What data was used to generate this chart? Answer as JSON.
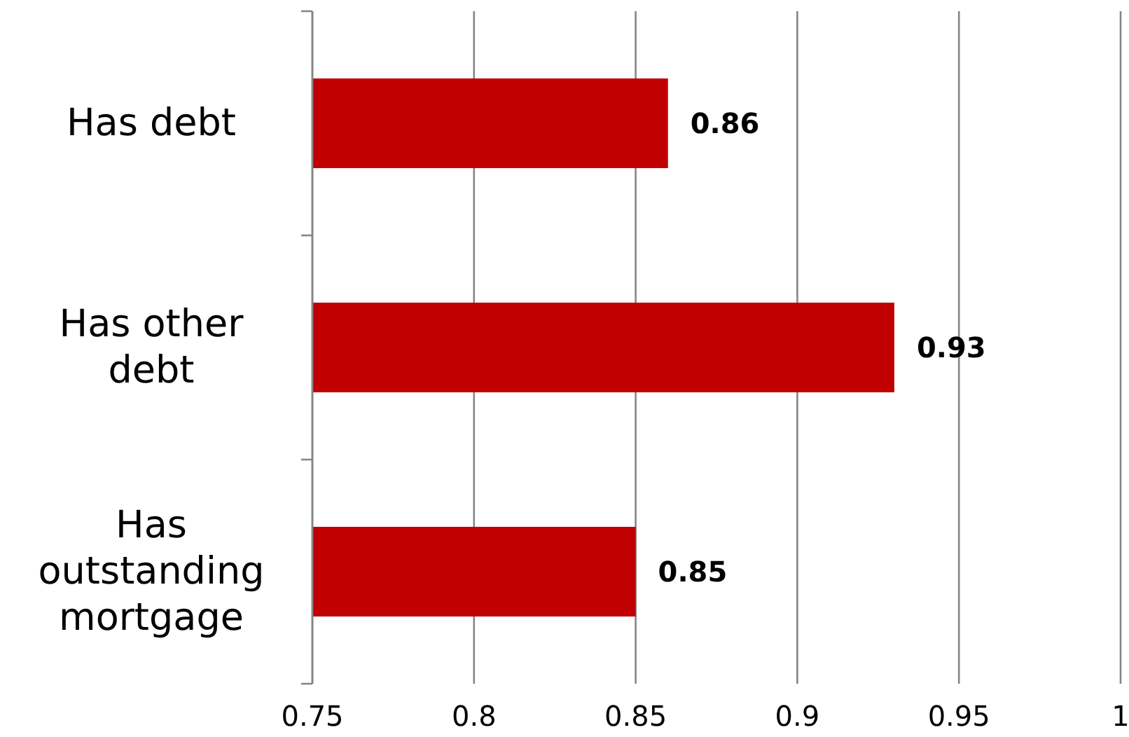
{
  "chart_data": {
    "type": "bar",
    "orientation": "horizontal",
    "categories": [
      "Has debt",
      "Has other debt",
      "Has outstanding mortgage"
    ],
    "values": [
      0.86,
      0.93,
      0.85
    ],
    "color": "#c00000",
    "xlim": [
      0.75,
      1
    ],
    "xticks": [
      0.75,
      0.8,
      0.85,
      0.9,
      0.95,
      1
    ],
    "grid": "x",
    "data_labels": true
  }
}
